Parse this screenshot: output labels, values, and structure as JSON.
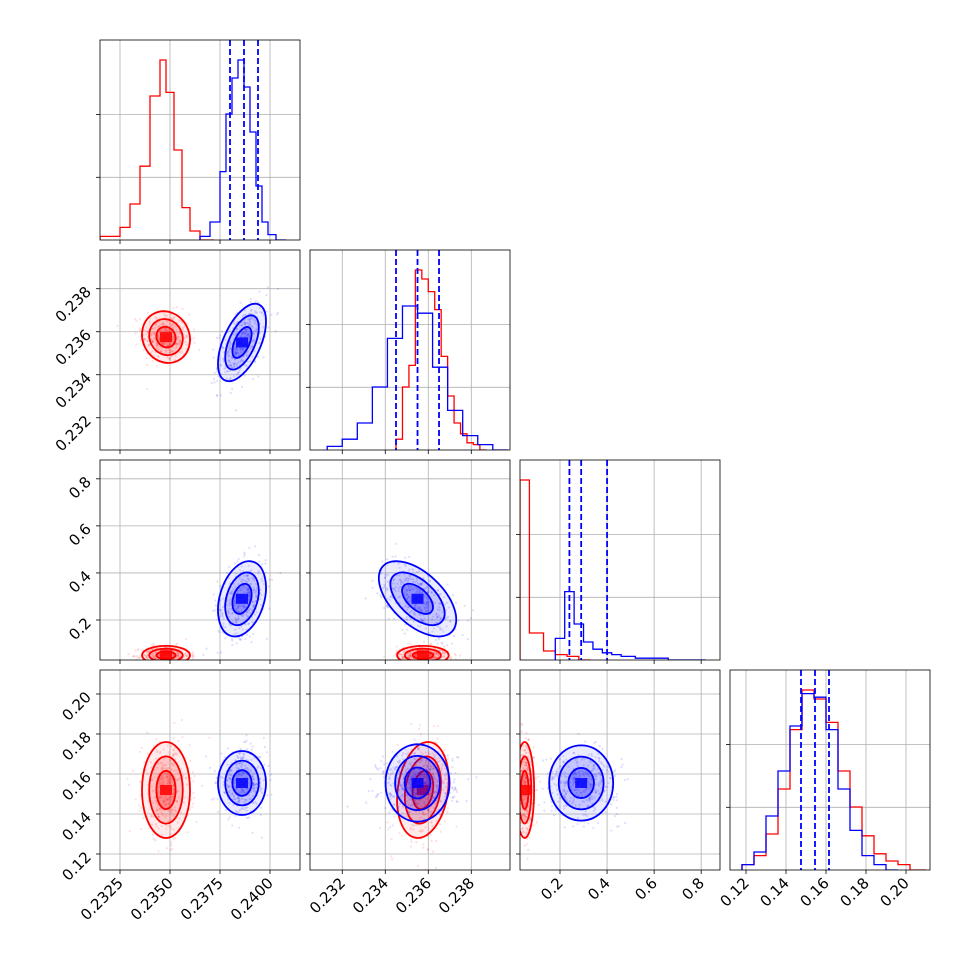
{
  "chart_data": {
    "type": "corner",
    "parameters": [
      {
        "range": [
          0.2315,
          0.2415
        ],
        "ticks": [
          0.2325,
          0.235,
          0.2375,
          0.24
        ],
        "tick_labels": [
          "0.2325",
          "0.2350",
          "0.2375",
          "0.2400"
        ]
      },
      {
        "range": [
          0.2305,
          0.2398
        ],
        "ticks": [
          0.232,
          0.234,
          0.236,
          0.238
        ],
        "tick_labels": [
          "0.232",
          "0.234",
          "0.236",
          "0.238"
        ]
      },
      {
        "range": [
          0.03,
          0.88
        ],
        "ticks": [
          0.2,
          0.4,
          0.6,
          0.8
        ],
        "tick_labels": [
          "0.2",
          "0.4",
          "0.6",
          "0.8"
        ]
      },
      {
        "range": [
          0.112,
          0.212
        ],
        "ticks": [
          0.12,
          0.14,
          0.16,
          0.18,
          0.2
        ],
        "tick_labels": [
          "0.12",
          "0.14",
          "0.16",
          "0.18",
          "0.20"
        ]
      }
    ],
    "grid": true,
    "series": [
      {
        "color": "#ff0000",
        "mean": [
          0.2348,
          0.23575,
          0.05,
          0.152
        ],
        "std": [
          0.0006,
          0.0006,
          0.02,
          0.012
        ],
        "corr": [
          [
            0,
            1,
            -0.1
          ],
          [
            0,
            3,
            0.0
          ],
          [
            1,
            3,
            0.2
          ],
          [
            1,
            2,
            0.0
          ],
          [
            0,
            2,
            0.0
          ],
          [
            2,
            3,
            0.0
          ]
        ],
        "hist_edges": [
          [
            0.2315,
            0.2325,
            0.233,
            0.2335,
            0.234,
            0.2345,
            0.2348,
            0.2352,
            0.2356,
            0.236,
            0.2365,
            0.2372
          ],
          [
            0.2345,
            0.2348,
            0.2351,
            0.2354,
            0.2357,
            0.236,
            0.2363,
            0.2366,
            0.2369,
            0.2372,
            0.2375,
            0.2378,
            0.2381,
            0.2384,
            0.2387
          ],
          [
            0.03,
            0.07,
            0.13,
            0.18,
            0.23,
            0.28,
            0.33
          ],
          [
            0.118,
            0.124,
            0.13,
            0.136,
            0.142,
            0.148,
            0.154,
            0.16,
            0.166,
            0.172,
            0.178,
            0.184,
            0.19,
            0.196,
            0.202,
            0.21
          ]
        ],
        "hist_counts": [
          [
            0.02,
            0.07,
            0.2,
            0.41,
            0.8,
            1.0,
            0.82,
            0.5,
            0.18,
            0.05,
            0.0
          ],
          [
            0.06,
            0.35,
            0.47,
            1.0,
            0.95,
            0.88,
            0.78,
            0.52,
            0.3,
            0.15,
            0.09,
            0.04,
            0.03,
            0.0
          ],
          [
            1.0,
            0.15,
            0.05,
            0.03,
            0.02,
            0.0
          ],
          [
            0.03,
            0.08,
            0.2,
            0.45,
            0.78,
            1.0,
            0.95,
            0.82,
            0.55,
            0.35,
            0.19,
            0.09,
            0.05,
            0.03,
            0.0
          ]
        ]
      },
      {
        "color": "#0000ff",
        "mean": [
          0.2386,
          0.2355,
          0.29,
          0.1555
        ],
        "std": [
          0.0006,
          0.0009,
          0.08,
          0.008
        ],
        "corr": [
          [
            0,
            1,
            0.55
          ],
          [
            0,
            2,
            0.3
          ],
          [
            1,
            2,
            -0.55
          ],
          [
            0,
            3,
            0.0
          ],
          [
            1,
            3,
            0.0
          ],
          [
            2,
            3,
            0.0
          ]
        ],
        "quantiles": [
          [
            0.238,
            0.2387,
            0.2394
          ],
          [
            0.2345,
            0.2355,
            0.2365
          ],
          [
            0.24,
            0.29,
            0.4
          ],
          [
            0.1475,
            0.1545,
            0.1615
          ]
        ],
        "hist_edges": [
          [
            0.2365,
            0.237,
            0.2375,
            0.2378,
            0.2381,
            0.2384,
            0.2387,
            0.239,
            0.2393,
            0.2396,
            0.2399,
            0.2403,
            0.2408
          ],
          [
            0.2313,
            0.232,
            0.2327,
            0.2334,
            0.2341,
            0.2348,
            0.2355,
            0.2362,
            0.2369,
            0.2376,
            0.2383,
            0.239,
            0.2397
          ],
          [
            0.18,
            0.22,
            0.26,
            0.3,
            0.34,
            0.38,
            0.42,
            0.46,
            0.52,
            0.58,
            0.66,
            0.74,
            0.82
          ],
          [
            0.118,
            0.124,
            0.13,
            0.136,
            0.142,
            0.148,
            0.154,
            0.16,
            0.166,
            0.172,
            0.178,
            0.184,
            0.19,
            0.196
          ]
        ],
        "hist_counts": [
          [
            0.02,
            0.1,
            0.38,
            0.7,
            0.9,
            1.0,
            0.85,
            0.6,
            0.3,
            0.1,
            0.03,
            0.0
          ],
          [
            0.02,
            0.06,
            0.15,
            0.35,
            0.62,
            0.8,
            0.76,
            0.46,
            0.22,
            0.08,
            0.03,
            0.0
          ],
          [
            0.12,
            0.38,
            0.2,
            0.1,
            0.06,
            0.04,
            0.03,
            0.02,
            0.01,
            0.01,
            0.0,
            0.0
          ],
          [
            0.03,
            0.1,
            0.3,
            0.55,
            0.8,
            0.98,
            0.96,
            0.78,
            0.45,
            0.22,
            0.08,
            0.03,
            0.0
          ]
        ]
      }
    ]
  }
}
